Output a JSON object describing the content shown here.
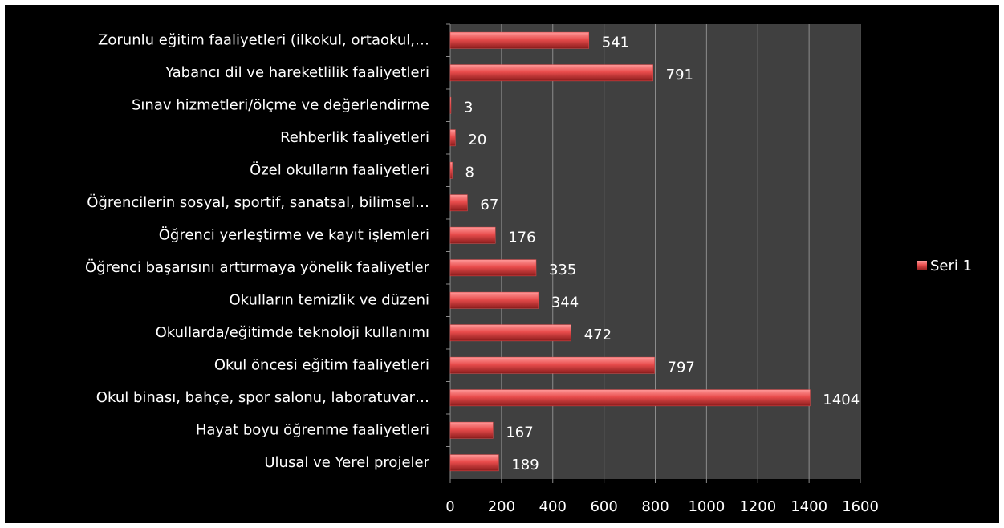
{
  "chart_data": {
    "type": "bar",
    "orientation": "horizontal",
    "categories": [
      "Zorunlu eğitim faaliyetleri (ilkokul, ortaokul,…",
      "Yabancı dil ve hareketlilik faaliyetleri",
      "Sınav hizmetleri/ölçme ve değerlendirme",
      "Rehberlik faaliyetleri",
      "Özel okulların faaliyetleri",
      "Öğrencilerin sosyal, sportif, sanatsal, bilimsel…",
      "Öğrenci yerleştirme ve kayıt işlemleri",
      "Öğrenci başarısını arttırmaya yönelik faaliyetler",
      "Okulların temizlik ve düzeni",
      "Okullarda/eğitimde teknoloji kullanımı",
      "Okul öncesi eğitim faaliyetleri",
      "Okul binası, bahçe, spor salonu, laboratuvar…",
      "Hayat boyu öğrenme faaliyetleri",
      "Ulusal ve Yerel projeler"
    ],
    "series": [
      {
        "name": "Seri 1",
        "color": "#e84c4c",
        "values": [
          541,
          791,
          3,
          20,
          8,
          67,
          176,
          335,
          344,
          472,
          797,
          1404,
          167,
          189
        ]
      }
    ],
    "xlim": [
      0,
      1600
    ],
    "xticks": [
      0,
      200,
      400,
      600,
      800,
      1000,
      1200,
      1400,
      1600
    ],
    "grid": true,
    "legend": "right"
  }
}
